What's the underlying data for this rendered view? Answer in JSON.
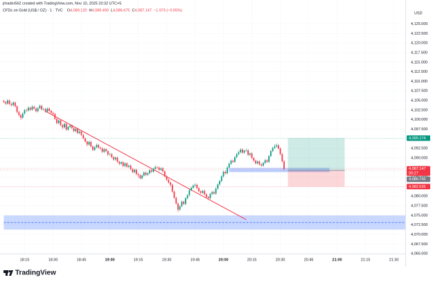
{
  "chart_data": {
    "type": "candlestick",
    "credit": "jrtrader562 created with TradingView.com, Nov 10, 2025 20:32 UTC+5",
    "symbol": "CFDs on Gold (US$ / OZ) · 1 · TVC",
    "legend": [
      {
        "key": "O",
        "text": "4,089.120"
      },
      {
        "key": "H",
        "text": "4,089.490"
      },
      {
        "key": "L",
        "text": "4,086.675"
      },
      {
        "key": "C",
        "text": "4,087.147"
      }
    ],
    "change": "−1.973 (−0.05%)",
    "currency": "USD",
    "brand": "TradingView",
    "up_color": "#089981",
    "down_color": "#f23645",
    "xlim": [
      "18:02",
      "21:36"
    ],
    "xticks": [
      "18:15",
      "18:30",
      "18:45",
      "19:00",
      "19:15",
      "19:30",
      "19:45",
      "20:00",
      "20:15",
      "20:30",
      "20:45",
      "21:00",
      "21:15",
      "21:30"
    ],
    "ylim": [
      4062.5,
      4131.25
    ],
    "yticks": [
      {
        "value": 4065,
        "label": "4,065.000"
      },
      {
        "value": 4067.5,
        "label": "4,067.500"
      },
      {
        "value": 4070,
        "label": "4,070.000"
      },
      {
        "value": 4072.5,
        "label": "4,072.500"
      },
      {
        "value": 4075,
        "label": "4,075.000"
      },
      {
        "value": 4077.5,
        "label": "4,077.500"
      },
      {
        "value": 4080,
        "label": "4,080.000"
      },
      {
        "value": 4082.5,
        "label": "4,082.500"
      },
      {
        "value": 4085,
        "label": "4,085.000"
      },
      {
        "value": 4087.5,
        "label": "4,087.500"
      },
      {
        "value": 4090,
        "label": "4,090.000"
      },
      {
        "value": 4092.5,
        "label": "4,092.500"
      },
      {
        "value": 4095,
        "label": "4,095.000"
      },
      {
        "value": 4097.5,
        "label": "4,097.500"
      },
      {
        "value": 4100,
        "label": "4,100.000"
      },
      {
        "value": 4102.5,
        "label": "4,102.500"
      },
      {
        "value": 4105,
        "label": "4,105.000"
      },
      {
        "value": 4107.5,
        "label": "4,107.500"
      },
      {
        "value": 4110,
        "label": "4,110.000"
      },
      {
        "value": 4112.5,
        "label": "4,112.500"
      },
      {
        "value": 4115,
        "label": "4,115.000"
      },
      {
        "value": 4117.5,
        "label": "4,117.500"
      },
      {
        "value": 4120,
        "label": "4,120.000"
      },
      {
        "value": 4122.5,
        "label": "4,122.500"
      },
      {
        "value": 4125,
        "label": "4,125.000"
      }
    ],
    "x": [
      "18:04",
      "18:05",
      "18:06",
      "18:07",
      "18:08",
      "18:09",
      "18:10",
      "18:11",
      "18:12",
      "18:13",
      "18:14",
      "18:15",
      "18:16",
      "18:17",
      "18:18",
      "18:19",
      "18:20",
      "18:21",
      "18:22",
      "18:23",
      "18:24",
      "18:25",
      "18:26",
      "18:27",
      "18:28",
      "18:29",
      "18:30",
      "18:31",
      "18:32",
      "18:33",
      "18:34",
      "18:35",
      "18:36",
      "18:37",
      "18:38",
      "18:39",
      "18:40",
      "18:41",
      "18:42",
      "18:43",
      "18:44",
      "18:45",
      "18:46",
      "18:47",
      "18:48",
      "18:49",
      "18:50",
      "18:51",
      "18:52",
      "18:53",
      "18:54",
      "18:55",
      "18:56",
      "18:57",
      "18:58",
      "18:59",
      "19:00",
      "19:01",
      "19:02",
      "19:03",
      "19:04",
      "19:05",
      "19:06",
      "19:07",
      "19:08",
      "19:09",
      "19:10",
      "19:11",
      "19:12",
      "19:13",
      "19:14",
      "19:15",
      "19:16",
      "19:17",
      "19:18",
      "19:19",
      "19:20",
      "19:21",
      "19:22",
      "19:23",
      "19:24",
      "19:25",
      "19:26",
      "19:27",
      "19:28",
      "19:29",
      "19:30",
      "19:31",
      "19:32",
      "19:33",
      "19:34",
      "19:35",
      "19:36",
      "19:37",
      "19:38",
      "19:39",
      "19:40",
      "19:41",
      "19:42",
      "19:43",
      "19:44",
      "19:45",
      "19:46",
      "19:47",
      "19:48",
      "19:49",
      "19:50",
      "19:51",
      "19:52",
      "19:53",
      "19:54",
      "19:55",
      "19:56",
      "19:57",
      "19:58",
      "19:59",
      "20:00",
      "20:01",
      "20:02",
      "20:03",
      "20:04",
      "20:05",
      "20:06",
      "20:07",
      "20:08",
      "20:09",
      "20:10",
      "20:11",
      "20:12",
      "20:13",
      "20:14",
      "20:15",
      "20:16",
      "20:17",
      "20:18",
      "20:19",
      "20:20",
      "20:21",
      "20:22",
      "20:23",
      "20:24",
      "20:25",
      "20:26",
      "20:27",
      "20:28",
      "20:29",
      "20:30",
      "20:31",
      "20:32"
    ],
    "candles": [
      [
        4104.9,
        4105.2,
        4104.3,
        4104.6
      ],
      [
        4104.6,
        4104.9,
        4103.8,
        4104.2
      ],
      [
        4104.2,
        4105.4,
        4103.9,
        4105.0
      ],
      [
        4105.0,
        4105.3,
        4103.8,
        4104.1
      ],
      [
        4104.1,
        4104.5,
        4103.4,
        4103.8
      ],
      [
        4103.8,
        4104.8,
        4103.5,
        4104.5
      ],
      [
        4104.5,
        4104.7,
        4103.2,
        4103.5
      ],
      [
        4103.5,
        4103.8,
        4101.7,
        4102.0
      ],
      [
        4102.0,
        4102.3,
        4100.8,
        4101.2
      ],
      [
        4101.2,
        4101.5,
        4099.9,
        4100.5
      ],
      [
        4100.5,
        4101.9,
        4100.2,
        4101.6
      ],
      [
        4101.6,
        4102.8,
        4101.3,
        4102.5
      ],
      [
        4102.5,
        4102.9,
        4102.0,
        4102.4
      ],
      [
        4102.4,
        4103.5,
        4102.1,
        4103.1
      ],
      [
        4103.1,
        4103.4,
        4102.3,
        4102.6
      ],
      [
        4102.6,
        4103.8,
        4102.3,
        4103.4
      ],
      [
        4103.4,
        4103.7,
        4102.6,
        4102.9
      ],
      [
        4102.9,
        4103.2,
        4101.9,
        4102.2
      ],
      [
        4102.2,
        4103.3,
        4101.9,
        4103.0
      ],
      [
        4103.0,
        4104.0,
        4102.7,
        4103.6
      ],
      [
        4103.6,
        4103.9,
        4102.4,
        4102.7
      ],
      [
        4102.7,
        4103.1,
        4102.3,
        4102.8
      ],
      [
        4102.8,
        4103.1,
        4101.8,
        4102.1
      ],
      [
        4102.1,
        4103.2,
        4101.8,
        4102.9
      ],
      [
        4102.9,
        4103.2,
        4102.0,
        4102.3
      ],
      [
        4102.3,
        4102.6,
        4101.5,
        4101.8
      ],
      [
        4101.8,
        4102.1,
        4101.2,
        4101.5
      ],
      [
        4101.5,
        4101.8,
        4099.9,
        4100.2
      ],
      [
        4100.2,
        4100.5,
        4098.8,
        4099.1
      ],
      [
        4099.1,
        4100.1,
        4098.8,
        4099.8
      ],
      [
        4099.8,
        4100.1,
        4098.3,
        4098.6
      ],
      [
        4098.6,
        4098.9,
        4097.5,
        4098.0
      ],
      [
        4098.0,
        4099.2,
        4097.7,
        4098.9
      ],
      [
        4098.9,
        4099.2,
        4097.1,
        4097.4
      ],
      [
        4097.4,
        4098.4,
        4097.1,
        4098.1
      ],
      [
        4098.1,
        4098.8,
        4097.8,
        4098.5
      ],
      [
        4098.5,
        4098.8,
        4097.5,
        4097.8
      ],
      [
        4097.8,
        4098.1,
        4096.7,
        4097.0
      ],
      [
        4097.0,
        4097.9,
        4096.7,
        4097.6
      ],
      [
        4097.6,
        4097.9,
        4096.2,
        4096.5
      ],
      [
        4096.5,
        4097.2,
        4096.2,
        4096.9
      ],
      [
        4096.9,
        4097.2,
        4095.7,
        4096.0
      ],
      [
        4096.0,
        4096.3,
        4094.8,
        4095.1
      ],
      [
        4095.1,
        4095.4,
        4094.0,
        4094.3
      ],
      [
        4094.3,
        4094.6,
        4093.0,
        4093.5
      ],
      [
        4093.5,
        4094.5,
        4093.2,
        4094.2
      ],
      [
        4094.2,
        4094.5,
        4092.7,
        4093.0
      ],
      [
        4093.0,
        4093.3,
        4091.8,
        4092.1
      ],
      [
        4092.1,
        4093.1,
        4091.8,
        4092.8
      ],
      [
        4092.8,
        4093.8,
        4092.5,
        4093.4
      ],
      [
        4093.4,
        4093.7,
        4092.4,
        4092.7
      ],
      [
        4092.7,
        4093.0,
        4092.1,
        4092.5
      ],
      [
        4092.5,
        4092.8,
        4091.3,
        4091.6
      ],
      [
        4091.6,
        4092.6,
        4091.3,
        4092.3
      ],
      [
        4092.3,
        4092.6,
        4091.5,
        4091.8
      ],
      [
        4091.8,
        4092.1,
        4090.5,
        4090.9
      ],
      [
        4090.9,
        4091.4,
        4090.6,
        4091.0
      ],
      [
        4091.0,
        4091.3,
        4089.9,
        4090.2
      ],
      [
        4090.2,
        4090.5,
        4089.3,
        4089.6
      ],
      [
        4089.6,
        4090.4,
        4089.3,
        4090.1
      ],
      [
        4090.1,
        4090.4,
        4088.7,
        4089.0
      ],
      [
        4089.0,
        4089.3,
        4088.1,
        4088.5
      ],
      [
        4088.5,
        4089.2,
        4088.2,
        4088.9
      ],
      [
        4088.9,
        4089.2,
        4087.6,
        4087.9
      ],
      [
        4087.9,
        4088.9,
        4087.6,
        4088.6
      ],
      [
        4088.6,
        4088.9,
        4087.4,
        4087.7
      ],
      [
        4087.7,
        4088.3,
        4087.4,
        4088.0
      ],
      [
        4088.0,
        4088.3,
        4086.8,
        4087.1
      ],
      [
        4087.1,
        4087.4,
        4086.0,
        4086.3
      ],
      [
        4086.3,
        4087.2,
        4086.0,
        4086.9
      ],
      [
        4086.9,
        4087.2,
        4085.5,
        4085.8
      ],
      [
        4085.8,
        4086.1,
        4084.8,
        4085.5
      ],
      [
        4085.5,
        4085.8,
        4084.4,
        4084.7
      ],
      [
        4084.7,
        4085.7,
        4084.4,
        4085.4
      ],
      [
        4085.4,
        4086.5,
        4085.1,
        4086.2
      ],
      [
        4086.2,
        4086.5,
        4085.3,
        4085.6
      ],
      [
        4085.6,
        4086.3,
        4085.3,
        4086.0
      ],
      [
        4086.0,
        4087.1,
        4085.7,
        4086.8
      ],
      [
        4086.8,
        4087.1,
        4086.1,
        4086.4
      ],
      [
        4086.4,
        4087.5,
        4086.1,
        4087.2
      ],
      [
        4087.2,
        4088.1,
        4086.9,
        4087.6
      ],
      [
        4087.6,
        4087.9,
        4087.1,
        4087.5
      ],
      [
        4087.5,
        4087.8,
        4086.6,
        4086.9
      ],
      [
        4086.9,
        4087.6,
        4086.6,
        4087.3
      ],
      [
        4087.3,
        4087.6,
        4086.2,
        4086.5
      ],
      [
        4086.5,
        4086.8,
        4084.9,
        4085.2
      ],
      [
        4085.2,
        4085.5,
        4084.0,
        4084.3
      ],
      [
        4084.3,
        4084.6,
        4083.3,
        4083.6
      ],
      [
        4083.6,
        4083.9,
        4082.5,
        4083.0
      ],
      [
        4083.0,
        4083.3,
        4080.9,
        4081.2
      ],
      [
        4081.2,
        4081.5,
        4079.3,
        4079.6
      ],
      [
        4079.6,
        4079.9,
        4077.8,
        4078.1
      ],
      [
        4078.1,
        4078.4,
        4075.9,
        4076.5
      ],
      [
        4076.5,
        4077.7,
        4076.2,
        4077.4
      ],
      [
        4077.4,
        4078.9,
        4077.1,
        4078.6
      ],
      [
        4078.6,
        4078.9,
        4077.7,
        4078.0
      ],
      [
        4078.0,
        4079.8,
        4077.7,
        4079.5
      ],
      [
        4079.5,
        4080.6,
        4079.2,
        4080.3
      ],
      [
        4080.3,
        4081.9,
        4080.0,
        4081.6
      ],
      [
        4081.6,
        4082.5,
        4081.3,
        4082.2
      ],
      [
        4082.2,
        4083.1,
        4081.9,
        4082.8
      ],
      [
        4082.8,
        4083.4,
        4082.5,
        4083.0
      ],
      [
        4083.0,
        4083.3,
        4081.8,
        4082.1
      ],
      [
        4082.1,
        4082.4,
        4081.0,
        4081.3
      ],
      [
        4081.3,
        4081.6,
        4080.6,
        4080.9
      ],
      [
        4080.9,
        4081.7,
        4080.6,
        4081.4
      ],
      [
        4081.4,
        4081.7,
        4080.2,
        4080.5
      ],
      [
        4080.5,
        4080.8,
        4079.5,
        4079.8
      ],
      [
        4079.8,
        4080.1,
        4079.1,
        4079.5
      ],
      [
        4079.5,
        4080.9,
        4079.2,
        4080.6
      ],
      [
        4080.6,
        4081.4,
        4080.3,
        4081.1
      ],
      [
        4081.1,
        4081.4,
        4080.4,
        4080.7
      ],
      [
        4080.7,
        4082.3,
        4080.4,
        4082.0
      ],
      [
        4082.0,
        4083.4,
        4081.7,
        4083.1
      ],
      [
        4083.1,
        4084.3,
        4082.8,
        4084.0
      ],
      [
        4084.0,
        4085.5,
        4083.7,
        4085.2
      ],
      [
        4085.2,
        4086.7,
        4084.9,
        4086.4
      ],
      [
        4086.4,
        4086.7,
        4085.7,
        4086.0
      ],
      [
        4086.0,
        4087.8,
        4085.7,
        4087.5
      ],
      [
        4087.5,
        4088.8,
        4087.2,
        4088.5
      ],
      [
        4088.5,
        4089.6,
        4088.2,
        4089.3
      ],
      [
        4089.3,
        4089.6,
        4088.7,
        4089.0
      ],
      [
        4089.0,
        4090.5,
        4088.7,
        4090.2
      ],
      [
        4090.2,
        4091.3,
        4089.9,
        4091.0
      ],
      [
        4091.0,
        4091.9,
        4090.7,
        4091.5
      ],
      [
        4091.5,
        4092.5,
        4091.2,
        4092.2
      ],
      [
        4092.2,
        4092.5,
        4091.1,
        4091.4
      ],
      [
        4091.4,
        4092.2,
        4091.1,
        4091.9
      ],
      [
        4091.9,
        4092.4,
        4091.6,
        4092.0
      ],
      [
        4092.0,
        4092.3,
        4090.5,
        4090.8
      ],
      [
        4090.8,
        4091.5,
        4090.5,
        4091.2
      ],
      [
        4091.2,
        4091.5,
        4089.7,
        4090.0
      ],
      [
        4090.0,
        4090.3,
        4089.0,
        4089.3
      ],
      [
        4089.3,
        4089.6,
        4088.3,
        4088.6
      ],
      [
        4088.6,
        4089.4,
        4088.3,
        4089.1
      ],
      [
        4089.1,
        4089.4,
        4088.0,
        4088.3
      ],
      [
        4088.3,
        4088.6,
        4087.7,
        4088.0
      ],
      [
        4088.0,
        4089.0,
        4087.7,
        4088.7
      ],
      [
        4088.7,
        4089.7,
        4088.4,
        4089.4
      ],
      [
        4089.4,
        4089.7,
        4088.7,
        4089.0
      ],
      [
        4089.0,
        4090.8,
        4088.7,
        4090.5
      ],
      [
        4090.5,
        4092.1,
        4090.2,
        4091.8
      ],
      [
        4091.8,
        4092.9,
        4091.5,
        4092.6
      ],
      [
        4092.6,
        4093.6,
        4092.3,
        4093.0
      ],
      [
        4093.0,
        4093.8,
        4092.7,
        4093.3
      ],
      [
        4093.3,
        4093.6,
        4092.2,
        4092.5
      ],
      [
        4092.5,
        4092.8,
        4090.7,
        4091.0
      ],
      [
        4091.0,
        4091.3,
        4088.8,
        4089.12
      ],
      [
        4089.12,
        4089.49,
        4086.675,
        4087.147
      ]
    ],
    "trend_line": {
      "from": [
        "18:26",
        4102.2
      ],
      "to": [
        "20:12",
        4073.9
      ],
      "color": "#f23645"
    },
    "zone": {
      "from": "18:04",
      "to": "21:36",
      "top": 4075.0,
      "bottom": 4071.3,
      "mid": 4073.15,
      "color": "#2962ff"
    },
    "box": {
      "from": "20:03",
      "to": "20:56",
      "top": 4087.4,
      "bottom": 4086.3,
      "color": "#2962ff"
    },
    "position": {
      "from": "20:34",
      "to": "21:04",
      "entry": 4086.742,
      "target": 4095.174,
      "stop": 4082.526
    },
    "price_labels": [
      {
        "value": 4095.174,
        "label": "4,095.174",
        "color": "#089981"
      },
      {
        "value": 4087.147,
        "label": "4,087.147",
        "color": "#f23645",
        "countdown": "00:27"
      },
      {
        "value": 4086.742,
        "label": "4,086.742",
        "color": "#787b86"
      },
      {
        "value": 4082.526,
        "label": "4,082.526",
        "color": "#f23645"
      }
    ]
  }
}
